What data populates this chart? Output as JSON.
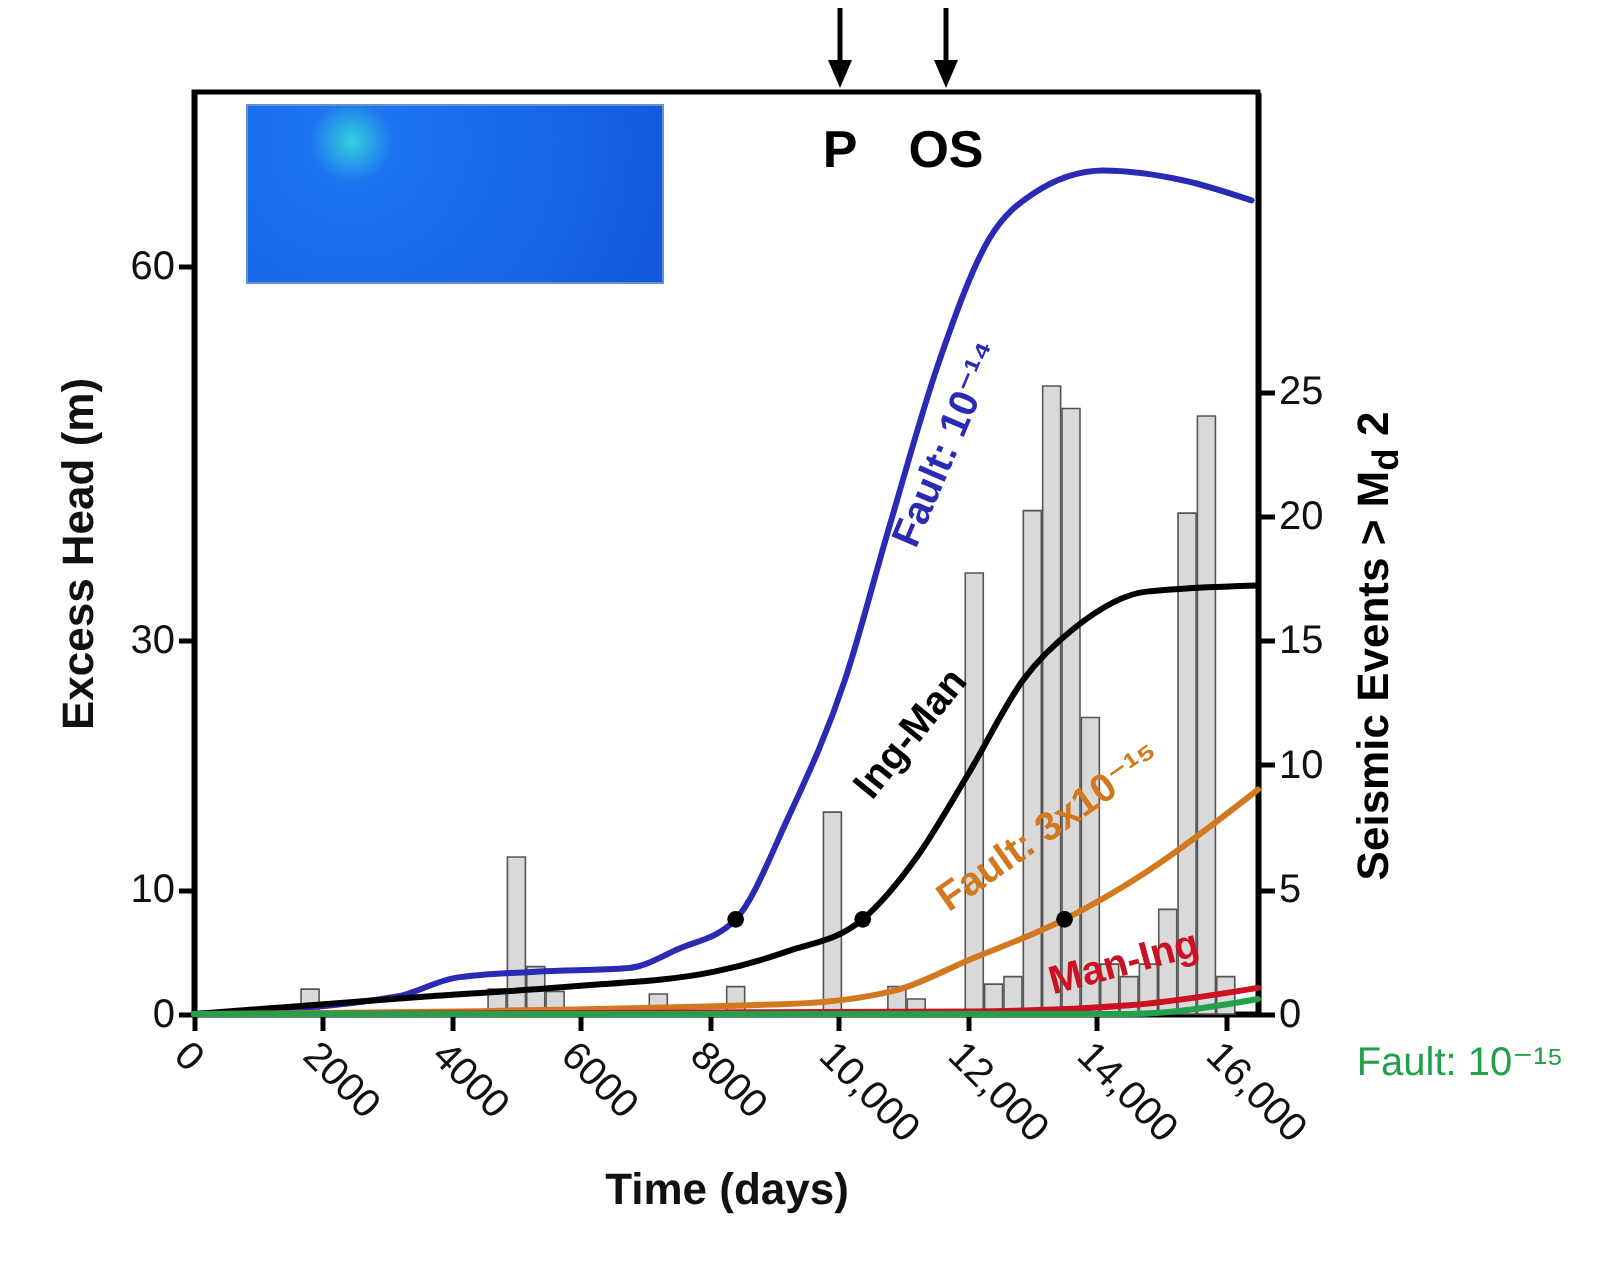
{
  "chart_data": {
    "type": "line",
    "xlabel": "Time (days)",
    "ylabel": "Excess Head (m)",
    "y2label": "Seismic Events > M$_{d}$ 2",
    "xlim": [
      0,
      16500
    ],
    "xticks": [
      0,
      2000,
      4000,
      6000,
      8000,
      {
        "value": 10000,
        "label": "10,000"
      },
      {
        "value": 12000,
        "label": "12,000"
      },
      {
        "value": 14000,
        "label": "14,000"
      },
      {
        "value": 16000,
        "label": "16,000"
      }
    ],
    "ylim": [
      0,
      74
    ],
    "yticks": [
      0,
      10,
      30,
      60
    ],
    "y2lim": [
      0,
      37
    ],
    "y2ticks": [
      0,
      5,
      10,
      15,
      20,
      25
    ],
    "annotations": [
      "P",
      "OS"
    ],
    "series": [
      {
        "type": "bar",
        "axis": "y2",
        "color": "#d9d9d9",
        "x": [
          1800,
          4700,
          5000,
          5300,
          5600,
          6500,
          7200,
          8400,
          9900,
          10200,
          10900,
          11200,
          12100,
          12400,
          12700,
          13000,
          13300,
          13600,
          13900,
          14200,
          14500,
          14800,
          15100,
          15400,
          15700,
          16000
        ],
        "values": [
          1.0,
          1.0,
          6.3,
          1.9,
          0.9,
          null,
          0.8,
          1.1,
          8.1,
          null,
          1.1,
          0.6,
          17.7,
          1.2,
          1.5,
          20.2,
          25.2,
          24.3,
          11.9,
          2.0,
          1.5,
          2.0,
          4.2,
          20.1,
          24.0,
          1.5
        ]
      },
      {
        "name": "Fault: 10⁻¹⁴",
        "color": "#2a2ab5",
        "x": [
          0,
          3150,
          4050,
          5300,
          6750,
          7500,
          8400,
          9200,
          10100,
          10760,
          11550,
          12330,
          13000,
          14100,
          15350,
          16400
        ],
        "values": [
          0,
          1.4,
          2.9,
          3.4,
          3.7,
          5.2,
          7.6,
          15.6,
          26.9,
          38.7,
          52.3,
          62.2,
          65.8,
          67.7,
          66.9,
          65.3
        ]
      },
      {
        "name": "Ing-Man",
        "color": "#000000",
        "x": [
          0,
          3600,
          5840,
          8070,
          9190,
          10370,
          11210,
          12000,
          12870,
          13660,
          14770,
          16500
        ],
        "values": [
          0,
          1.4,
          2.2,
          3.4,
          5.0,
          7.6,
          12.6,
          19.2,
          26.9,
          31.0,
          33.9,
          34.4
        ]
      },
      {
        "name": "Fault: 3x10⁻¹⁵",
        "color": "#d2781e",
        "x": [
          0,
          9190,
          10880,
          12000,
          13500,
          14770,
          16500
        ],
        "values": [
          0,
          0.8,
          1.9,
          4.3,
          7.6,
          11.4,
          18.0
        ]
      },
      {
        "name": "Man-Ing",
        "color": "#cc1122",
        "x": [
          0,
          12000,
          14500,
          16500
        ],
        "values": [
          0,
          0.2,
          0.7,
          2.1
        ]
      },
      {
        "name": "Fault: 10⁻¹⁵",
        "color": "#22a04b",
        "x": [
          0,
          14500,
          16500
        ],
        "values": [
          0,
          0,
          1.2
        ]
      },
      {
        "type": "scatter",
        "color": "#000000",
        "x": [
          8400,
          10370,
          13500
        ],
        "values": [
          7.6,
          7.6,
          7.6
        ]
      }
    ]
  }
}
